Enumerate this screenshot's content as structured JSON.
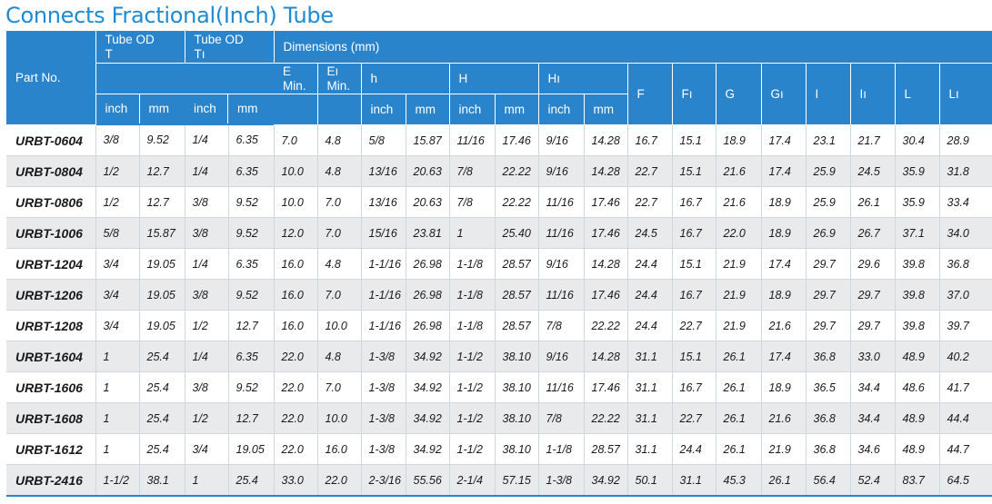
{
  "title": "Connects Fractional(Inch) Tube",
  "header": {
    "part_no": "Part No.",
    "tube_od_t": [
      "Tube OD",
      "T"
    ],
    "tube_od_t1": [
      "Tube OD",
      "Tı"
    ],
    "dimensions": "Dimensions (mm)",
    "e": [
      "E",
      "Min."
    ],
    "e1": [
      "Eı",
      "Min."
    ],
    "h": "h",
    "H": "H",
    "H1": "Hı",
    "F": "F",
    "F1": "Fı",
    "G": "G",
    "G1": "Gı",
    "I": "I",
    "I1": "Iı",
    "L": "L",
    "L1": "Lı",
    "inch": "inch",
    "mm": "mm"
  },
  "rows": [
    [
      "URBT-0604",
      "3/8",
      "9.52",
      "1/4",
      "6.35",
      "7.0",
      "4.8",
      "5/8",
      "15.87",
      "11/16",
      "17.46",
      "9/16",
      "14.28",
      "16.7",
      "15.1",
      "18.9",
      "17.4",
      "23.1",
      "21.7",
      "30.4",
      "28.9"
    ],
    [
      "URBT-0804",
      "1/2",
      "12.7",
      "1/4",
      "6.35",
      "10.0",
      "4.8",
      "13/16",
      "20.63",
      "7/8",
      "22.22",
      "9/16",
      "14.28",
      "22.7",
      "15.1",
      "21.6",
      "17.4",
      "25.9",
      "24.5",
      "35.9",
      "31.8"
    ],
    [
      "URBT-0806",
      "1/2",
      "12.7",
      "3/8",
      "9.52",
      "10.0",
      "7.0",
      "13/16",
      "20.63",
      "7/8",
      "22.22",
      "11/16",
      "17.46",
      "22.7",
      "16.7",
      "21.6",
      "18.9",
      "25.9",
      "26.1",
      "35.9",
      "33.4"
    ],
    [
      "URBT-1006",
      "5/8",
      "15.87",
      "3/8",
      "9.52",
      "12.0",
      "7.0",
      "15/16",
      "23.81",
      "1",
      "25.40",
      "11/16",
      "17.46",
      "24.5",
      "16.7",
      "22.0",
      "18.9",
      "26.9",
      "26.7",
      "37.1",
      "34.0"
    ],
    [
      "URBT-1204",
      "3/4",
      "19.05",
      "1/4",
      "6.35",
      "16.0",
      "4.8",
      "1-1/16",
      "26.98",
      "1-1/8",
      "28.57",
      "9/16",
      "14.28",
      "24.4",
      "15.1",
      "21.9",
      "17.4",
      "29.7",
      "29.6",
      "39.8",
      "36.8"
    ],
    [
      "URBT-1206",
      "3/4",
      "19.05",
      "3/8",
      "9.52",
      "16.0",
      "7.0",
      "1-1/16",
      "26.98",
      "1-1/8",
      "28.57",
      "11/16",
      "17.46",
      "24.4",
      "16.7",
      "21.9",
      "18.9",
      "29.7",
      "29.7",
      "39.8",
      "37.0"
    ],
    [
      "URBT-1208",
      "3/4",
      "19.05",
      "1/2",
      "12.7",
      "16.0",
      "10.0",
      "1-1/16",
      "26.98",
      "1-1/8",
      "28.57",
      "7/8",
      "22.22",
      "24.4",
      "22.7",
      "21.9",
      "21.6",
      "29.7",
      "29.7",
      "39.8",
      "39.7"
    ],
    [
      "URBT-1604",
      "1",
      "25.4",
      "1/4",
      "6.35",
      "22.0",
      "4.8",
      "1-3/8",
      "34.92",
      "1-1/2",
      "38.10",
      "9/16",
      "14.28",
      "31.1",
      "15.1",
      "26.1",
      "17.4",
      "36.8",
      "33.0",
      "48.9",
      "40.2"
    ],
    [
      "URBT-1606",
      "1",
      "25.4",
      "3/8",
      "9.52",
      "22.0",
      "7.0",
      "1-3/8",
      "34.92",
      "1-1/2",
      "38.10",
      "11/16",
      "17.46",
      "31.1",
      "16.7",
      "26.1",
      "18.9",
      "36.5",
      "34.4",
      "48.6",
      "41.7"
    ],
    [
      "URBT-1608",
      "1",
      "25.4",
      "1/2",
      "12.7",
      "22.0",
      "10.0",
      "1-3/8",
      "34.92",
      "1-1/2",
      "38.10",
      "7/8",
      "22.22",
      "31.1",
      "22.7",
      "26.1",
      "21.6",
      "36.8",
      "34.4",
      "48.9",
      "44.4"
    ],
    [
      "URBT-1612",
      "1",
      "25.4",
      "3/4",
      "19.05",
      "22.0",
      "16.0",
      "1-3/8",
      "34.92",
      "1-1/2",
      "38.10",
      "1-1/8",
      "28.57",
      "31.1",
      "24.4",
      "26.1",
      "21.9",
      "36.8",
      "34.6",
      "48.9",
      "44.7"
    ],
    [
      "URBT-2416",
      "1-1/2",
      "38.1",
      "1",
      "25.4",
      "33.0",
      "22.0",
      "2-3/16",
      "55.56",
      "2-1/4",
      "57.15",
      "1-3/8",
      "34.92",
      "50.1",
      "31.1",
      "45.3",
      "26.1",
      "56.4",
      "52.4",
      "83.7",
      "64.5"
    ]
  ]
}
